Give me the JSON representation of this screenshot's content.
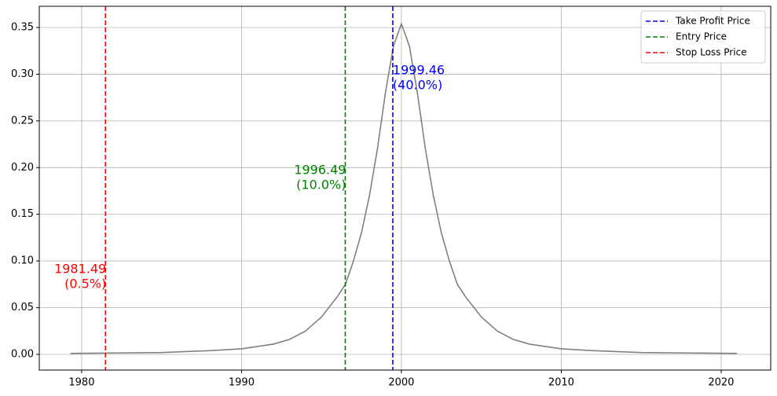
{
  "chart_data": {
    "type": "line",
    "x": [
      1979.3,
      1982,
      1985,
      1988,
      1990,
      1992,
      1993,
      1994,
      1995,
      1996,
      1996.5,
      1997,
      1997.5,
      1998,
      1998.5,
      1999,
      1999.5,
      2000,
      2000.5,
      2001,
      2001.5,
      2002,
      2002.5,
      2003,
      2003.5,
      2004,
      2005,
      2006,
      2007,
      2008,
      2010,
      2012,
      2015,
      2018,
      2021
    ],
    "series": [
      {
        "color": "#808080",
        "values": [
          0.001,
          0.0015,
          0.002,
          0.004,
          0.006,
          0.011,
          0.016,
          0.025,
          0.04,
          0.062,
          0.075,
          0.1,
          0.13,
          0.17,
          0.22,
          0.28,
          0.33,
          0.354,
          0.33,
          0.28,
          0.22,
          0.17,
          0.13,
          0.1,
          0.075,
          0.062,
          0.04,
          0.025,
          0.016,
          0.011,
          0.006,
          0.004,
          0.002,
          0.0015,
          0.001
        ]
      }
    ],
    "vlines": [
      {
        "name": "Take Profit Price",
        "color": "#0000ff",
        "x": 1999.46,
        "note": "(40.0%)"
      },
      {
        "name": "Entry Price",
        "color": "#008000",
        "x": 1996.49,
        "note": "(10.0%)"
      },
      {
        "name": "Stop Loss Price",
        "color": "#ff0000",
        "x": 1981.49,
        "note": "(0.5%)"
      }
    ],
    "xlim": [
      1977.35,
      2023.1
    ],
    "xticks": [
      1980,
      1990,
      2000,
      2010,
      2020
    ],
    "ylim": [
      -0.0168,
      0.3727
    ],
    "yticks": [
      {
        "value": 0,
        "label": "0.00"
      },
      0.05,
      {
        "value": 0.1,
        "label": "0.10"
      },
      0.15,
      {
        "value": 0.2,
        "label": "0.20"
      },
      0.25,
      {
        "value": 0.3,
        "label": "0.30"
      },
      0.35
    ],
    "grid": true,
    "legend": "upper right"
  }
}
